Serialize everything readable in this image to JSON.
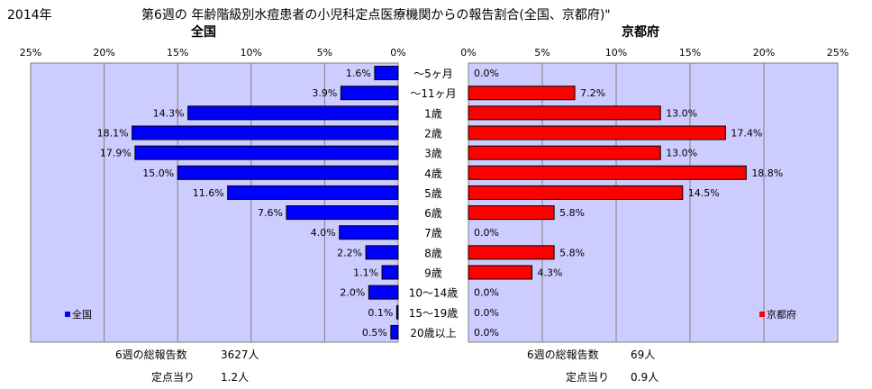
{
  "header": {
    "year": "2014年",
    "title": "第6週の 年齢階級別水痘患者の小児科定点医療機関からの報告割合(全国、京都府)\""
  },
  "chart_data": {
    "type": "bar",
    "orientation": "horizontal",
    "categories": [
      "〜5ヶ月",
      "〜11ヶ月",
      "1歳",
      "2歳",
      "3歳",
      "4歳",
      "5歳",
      "6歳",
      "7歳",
      "8歳",
      "9歳",
      "10〜14歳",
      "15〜19歳",
      "20歳以上"
    ],
    "ylim": [
      0,
      25
    ],
    "grid": true,
    "tick_labels": [
      "25%",
      "20%",
      "15%",
      "10%",
      "5%",
      "0%"
    ],
    "panels": [
      {
        "title": "全国",
        "legend": "全国",
        "legend_position": "bottom-left",
        "direction": "left",
        "color": "#0000ff",
        "series": [
          {
            "name": "全国",
            "values": [
              1.6,
              3.9,
              14.3,
              18.1,
              17.9,
              15.0,
              11.6,
              7.6,
              4.0,
              2.2,
              1.1,
              2.0,
              0.1,
              0.5
            ]
          }
        ],
        "labels": [
          "1.6%",
          "3.9%",
          "14.3%",
          "18.1%",
          "17.9%",
          "15.0%",
          "11.6%",
          "7.6%",
          "4.0%",
          "2.2%",
          "1.1%",
          "2.0%",
          "0.1%",
          "0.5%"
        ]
      },
      {
        "title": "京都府",
        "legend": "京都府",
        "legend_position": "bottom-right",
        "direction": "right",
        "color": "#ff0000",
        "series": [
          {
            "name": "京都府",
            "values": [
              0.0,
              7.2,
              13.0,
              17.4,
              13.0,
              18.8,
              14.5,
              5.8,
              0.0,
              5.8,
              4.3,
              0.0,
              0.0,
              0.0
            ]
          }
        ],
        "labels": [
          "0.0%",
          "7.2%",
          "13.0%",
          "17.4%",
          "13.0%",
          "18.8%",
          "14.5%",
          "5.8%",
          "0.0%",
          "5.8%",
          "4.3%",
          "0.0%",
          "0.0%",
          "0.0%"
        ]
      }
    ]
  },
  "footer": {
    "national": {
      "total_label": "6週の総報告数",
      "total_value": "3627人",
      "per_label": "定点当り",
      "per_value": "1.2人"
    },
    "kyoto": {
      "total_label": "6週の総報告数",
      "total_value": "69人",
      "per_label": "定点当り",
      "per_value": "0.9人"
    }
  },
  "colors": {
    "plot_bg": "#ccccff",
    "national_bar": "#0000ff",
    "kyoto_bar": "#ff0000",
    "grid": "#808080"
  }
}
